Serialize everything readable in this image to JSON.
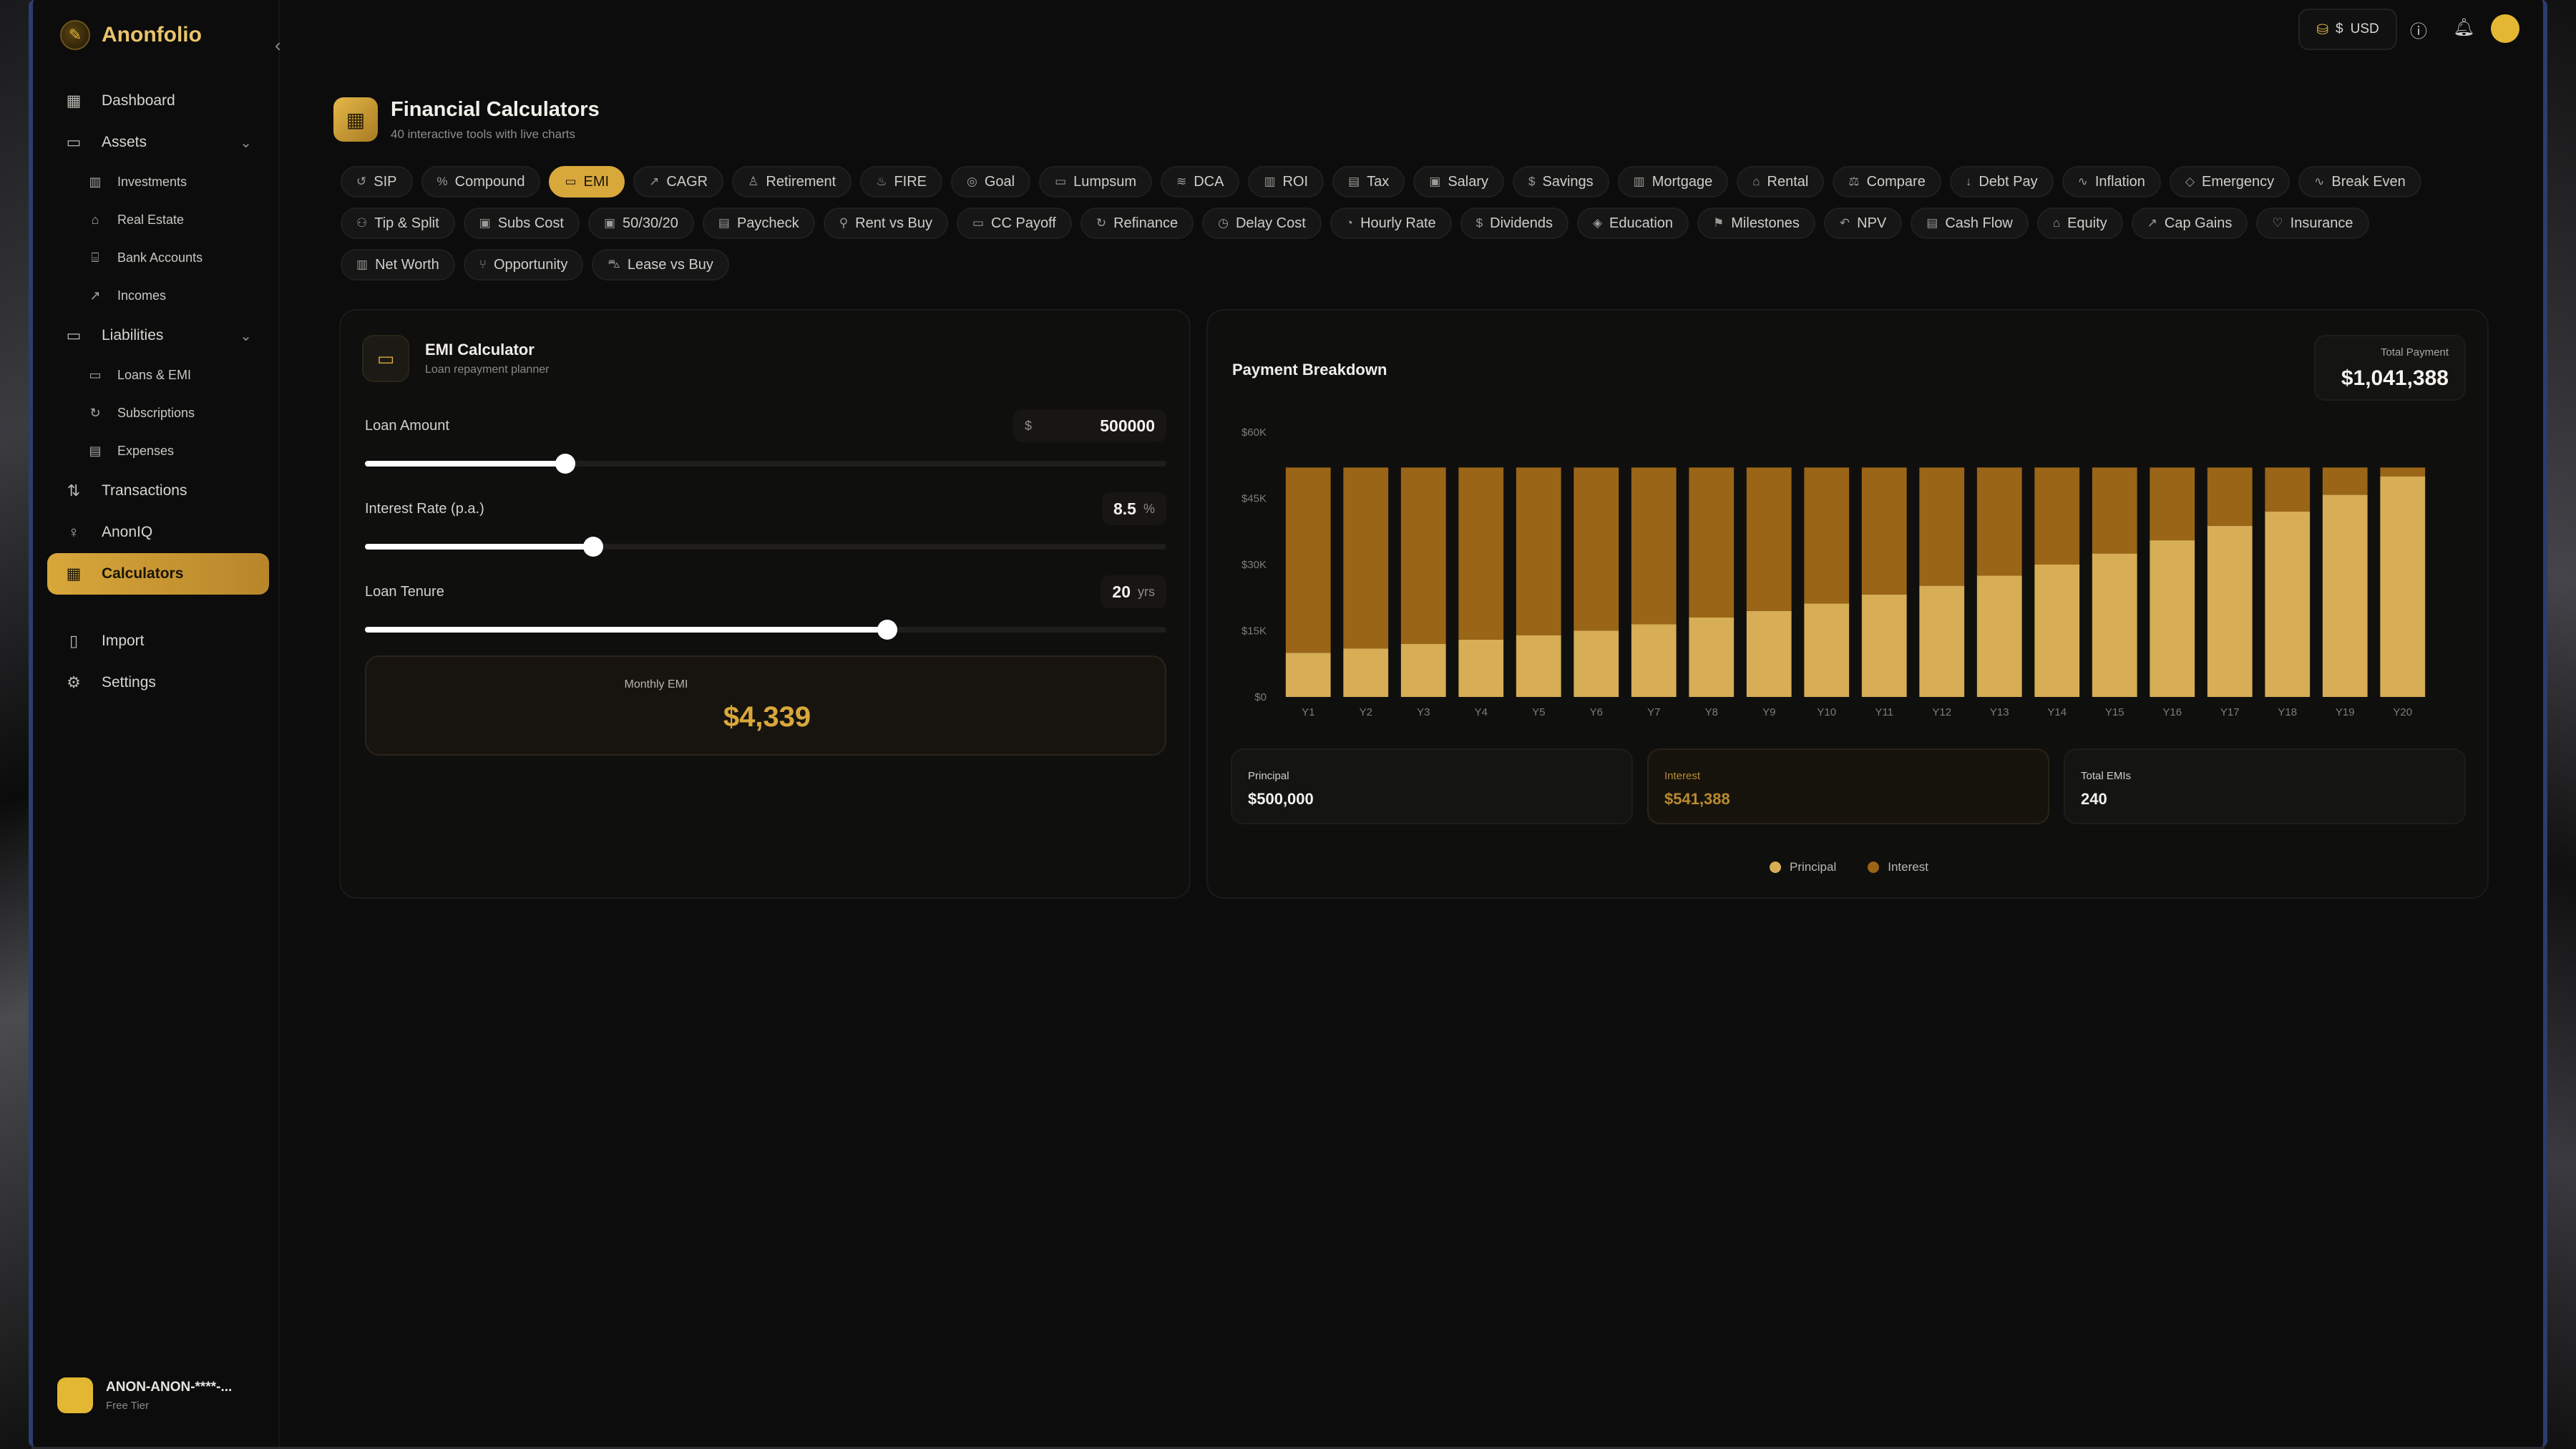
{
  "brand": {
    "name": "Anonfolio"
  },
  "sidebar": {
    "items": [
      {
        "label": "Dashboard",
        "icon": "grid-icon"
      },
      {
        "label": "Assets",
        "icon": "briefcase-icon"
      },
      {
        "label": "Investments",
        "icon": "building-icon"
      },
      {
        "label": "Real Estate",
        "icon": "home-icon"
      },
      {
        "label": "Bank Accounts",
        "icon": "bank-icon"
      },
      {
        "label": "Incomes",
        "icon": "trend-up-icon"
      },
      {
        "label": "Liabilities",
        "icon": "card-icon"
      },
      {
        "label": "Loans & EMI",
        "icon": "card-icon"
      },
      {
        "label": "Subscriptions",
        "icon": "refresh-icon"
      },
      {
        "label": "Expenses",
        "icon": "receipt-icon"
      },
      {
        "label": "Transactions",
        "icon": "arrows-icon"
      },
      {
        "label": "AnonIQ",
        "icon": "bulb-icon"
      },
      {
        "label": "Calculators",
        "icon": "calculator-icon"
      },
      {
        "label": "Import",
        "icon": "file-icon"
      },
      {
        "label": "Settings",
        "icon": "gear-icon"
      }
    ],
    "user": {
      "name": "ANON-ANON-****-...",
      "tier": "Free Tier"
    }
  },
  "topbar": {
    "currency_symbol": "$",
    "currency": "USD"
  },
  "header": {
    "title": "Financial Calculators",
    "subtitle": "40 interactive tools with live charts"
  },
  "tabs": [
    "SIP",
    "Compound",
    "EMI",
    "CAGR",
    "Retirement",
    "FIRE",
    "Goal",
    "Lumpsum",
    "DCA",
    "ROI",
    "Tax",
    "Salary",
    "Savings",
    "Mortgage",
    "Rental",
    "Compare",
    "Debt Pay",
    "Inflation",
    "Emergency",
    "Break Even",
    "Tip & Split",
    "Subs Cost",
    "50/30/20",
    "Paycheck",
    "Rent vs Buy",
    "CC Payoff",
    "Refinance",
    "Delay Cost",
    "Hourly Rate",
    "Dividends",
    "Education",
    "Milestones",
    "NPV",
    "Cash Flow",
    "Equity",
    "Cap Gains",
    "Insurance",
    "Net Worth",
    "Opportunity",
    "Lease vs Buy"
  ],
  "active_tab": "EMI",
  "calculator": {
    "title": "EMI Calculator",
    "subtitle": "Loan repayment planner",
    "loan_amount": {
      "label": "Loan Amount",
      "prefix": "$",
      "value": "500000",
      "fraction": 0.25
    },
    "interest_rate": {
      "label": "Interest Rate (p.a.)",
      "value": "8.5",
      "suffix": "%",
      "fraction": 0.285
    },
    "tenure": {
      "label": "Loan Tenure",
      "value": "20",
      "suffix": "yrs",
      "fraction": 0.652
    },
    "result": {
      "label": "Monthly EMI",
      "value": "$4,339"
    }
  },
  "breakdown": {
    "title": "Payment Breakdown",
    "total_label": "Total Payment",
    "total_value": "$1,041,388",
    "stats": [
      {
        "label": "Principal",
        "value": "$500,000"
      },
      {
        "label": "Interest",
        "value": "$541,388"
      },
      {
        "label": "Total EMIs",
        "value": "240"
      }
    ],
    "legend": [
      "Principal",
      "Interest"
    ]
  },
  "colors": {
    "accent": "#d9a83b",
    "principal": "#d7ad55",
    "interest": "#9a6517"
  },
  "chart_data": {
    "type": "bar",
    "stacked": true,
    "categories": [
      "Y1",
      "Y2",
      "Y3",
      "Y4",
      "Y5",
      "Y6",
      "Y7",
      "Y8",
      "Y9",
      "Y10",
      "Y11",
      "Y12",
      "Y13",
      "Y14",
      "Y15",
      "Y16",
      "Y17",
      "Y18",
      "Y19",
      "Y20"
    ],
    "series": [
      {
        "name": "Principal",
        "values": [
          10000,
          11000,
          12000,
          13000,
          14000,
          15000,
          16500,
          18000,
          19500,
          21200,
          23200,
          25200,
          27500,
          30000,
          32500,
          35500,
          38800,
          42000,
          45800,
          50000
        ]
      },
      {
        "name": "Interest",
        "values": [
          42000,
          41000,
          40000,
          39000,
          38000,
          37000,
          35500,
          34000,
          32500,
          30800,
          28800,
          26800,
          24500,
          22000,
          19500,
          16500,
          13200,
          10000,
          6200,
          2000
        ]
      }
    ],
    "yticks": [
      "$0",
      "$15K",
      "$30K",
      "$45K",
      "$60K"
    ],
    "ylim": [
      0,
      60000
    ]
  }
}
